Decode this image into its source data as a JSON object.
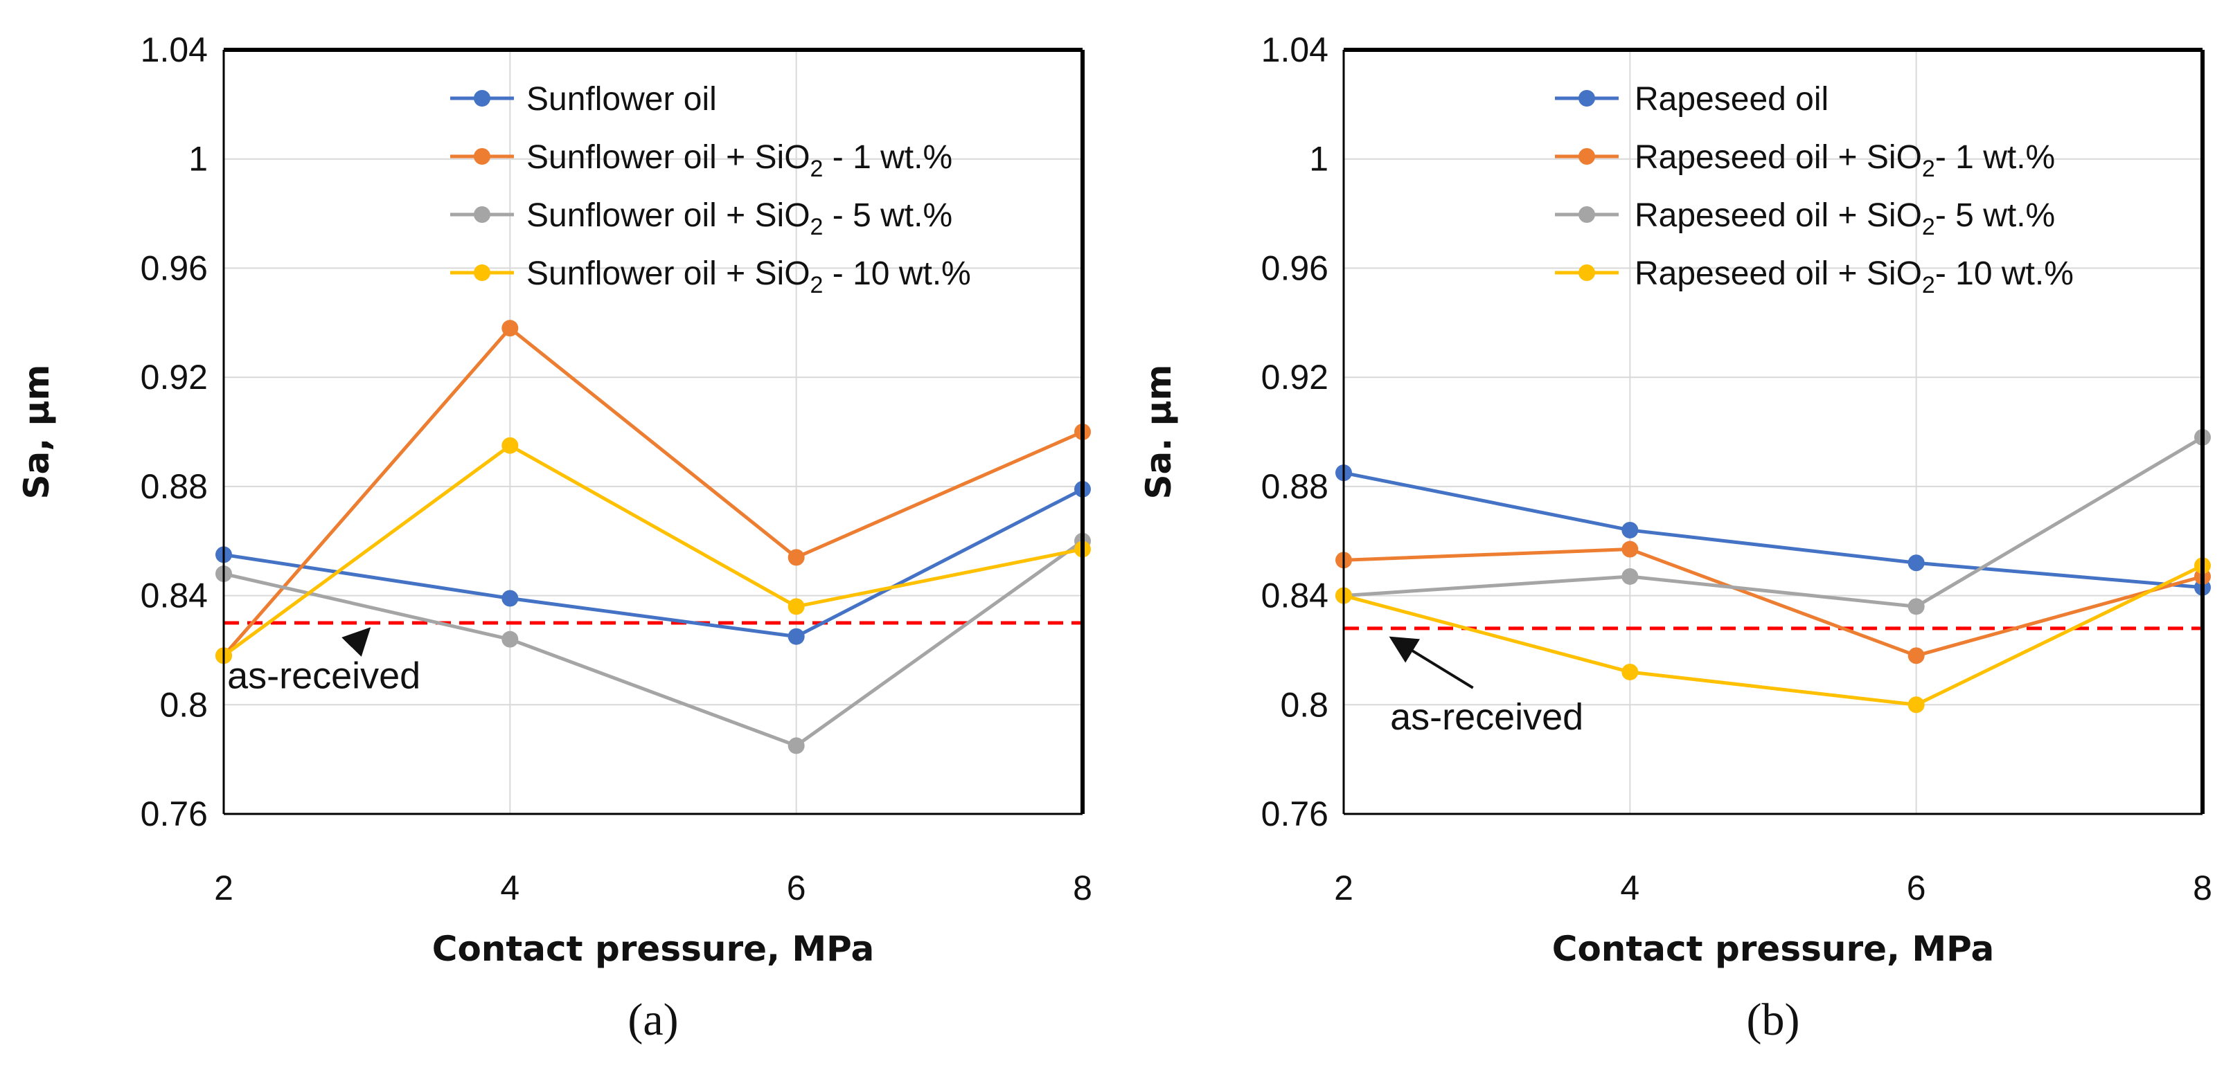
{
  "chart_data": [
    {
      "type": "line",
      "panel_label": "(a)",
      "xlabel": "Contact pressure, MPa",
      "ylabel": "Sa, μm",
      "x": [
        2,
        4,
        6,
        8
      ],
      "x_tick_labels": [
        "2",
        "4",
        "6",
        "8"
      ],
      "xlim": [
        2,
        8
      ],
      "ylim": [
        0.76,
        1.04
      ],
      "y_ticks": [
        0.76,
        0.8,
        0.84,
        0.88,
        0.92,
        0.96,
        1.0,
        1.04
      ],
      "y_tick_labels": [
        "0.76",
        "0.8",
        "0.84",
        "0.88",
        "0.92",
        "0.96",
        "1",
        "1.04"
      ],
      "grid": true,
      "legend_position": "top-right",
      "series": [
        {
          "name": "Sunflower oil",
          "legend": {
            "pre": "Sunflower oil",
            "sub": "",
            "post": ""
          },
          "color": "#4472C4",
          "values": [
            0.855,
            0.839,
            0.825,
            0.879
          ]
        },
        {
          "name": "Sunflower oil + SiO2 - 1 wt.%",
          "legend": {
            "pre": "Sunflower oil + SiO",
            "sub": "2",
            "post": " - 1 wt.%"
          },
          "color": "#ED7D31",
          "values": [
            0.818,
            0.938,
            0.854,
            0.9
          ]
        },
        {
          "name": "Sunflower oil + SiO2 - 5 wt.%",
          "legend": {
            "pre": "Sunflower oil + SiO",
            "sub": "2",
            "post": " - 5 wt.%"
          },
          "color": "#A5A5A5",
          "values": [
            0.848,
            0.824,
            0.785,
            0.86
          ]
        },
        {
          "name": "Sunflower oil + SiO2 - 10 wt.%",
          "legend": {
            "pre": "Sunflower oil + SiO",
            "sub": "2",
            "post": " - 10 wt.%"
          },
          "color": "#FFC000",
          "values": [
            0.818,
            0.895,
            0.836,
            0.857
          ]
        }
      ],
      "reference_line": {
        "label": "as-received",
        "value": 0.83,
        "color": "#FF0000",
        "arrow_tip": [
          3.0,
          0.829
        ],
        "text_at": [
          2.7,
          0.806
        ]
      }
    },
    {
      "type": "line",
      "panel_label": "(b)",
      "xlabel": "Contact pressure, MPa",
      "ylabel": "Sa. μm",
      "x": [
        2,
        4,
        6,
        8
      ],
      "x_tick_labels": [
        "2",
        "4",
        "6",
        "8"
      ],
      "xlim": [
        2,
        8
      ],
      "ylim": [
        0.76,
        1.04
      ],
      "y_ticks": [
        0.76,
        0.8,
        0.84,
        0.88,
        0.92,
        0.96,
        1.0,
        1.04
      ],
      "y_tick_labels": [
        "0.76",
        "0.8",
        "0.84",
        "0.88",
        "0.92",
        "0.96",
        "1",
        "1.04"
      ],
      "grid": true,
      "legend_position": "top-right",
      "series": [
        {
          "name": "Rapeseed oil",
          "legend": {
            "pre": "Rapeseed oil",
            "sub": "",
            "post": ""
          },
          "color": "#4472C4",
          "values": [
            0.885,
            0.864,
            0.852,
            0.843
          ]
        },
        {
          "name": "Rapeseed oil + SiO2- 1 wt.%",
          "legend": {
            "pre": "Rapeseed oil + SiO",
            "sub": "2",
            "post": "- 1 wt.%"
          },
          "color": "#ED7D31",
          "values": [
            0.853,
            0.857,
            0.818,
            0.847
          ]
        },
        {
          "name": "Rapeseed oil + SiO2- 5 wt.%",
          "legend": {
            "pre": "Rapeseed oil + SiO",
            "sub": "2",
            "post": "- 5 wt.%"
          },
          "color": "#A5A5A5",
          "values": [
            0.84,
            0.847,
            0.836,
            0.898
          ]
        },
        {
          "name": "Rapeseed oil + SiO2- 10 wt.%",
          "legend": {
            "pre": "Rapeseed oil + SiO",
            "sub": "2",
            "post": "- 10 wt.%"
          },
          "color": "#FFC000",
          "values": [
            0.84,
            0.812,
            0.8,
            0.851
          ]
        }
      ],
      "reference_line": {
        "label": "as-received",
        "value": 0.828,
        "color": "#FF0000",
        "arrow_tip": [
          2.35,
          0.826
        ],
        "text_at": [
          3.0,
          0.791
        ]
      }
    }
  ]
}
